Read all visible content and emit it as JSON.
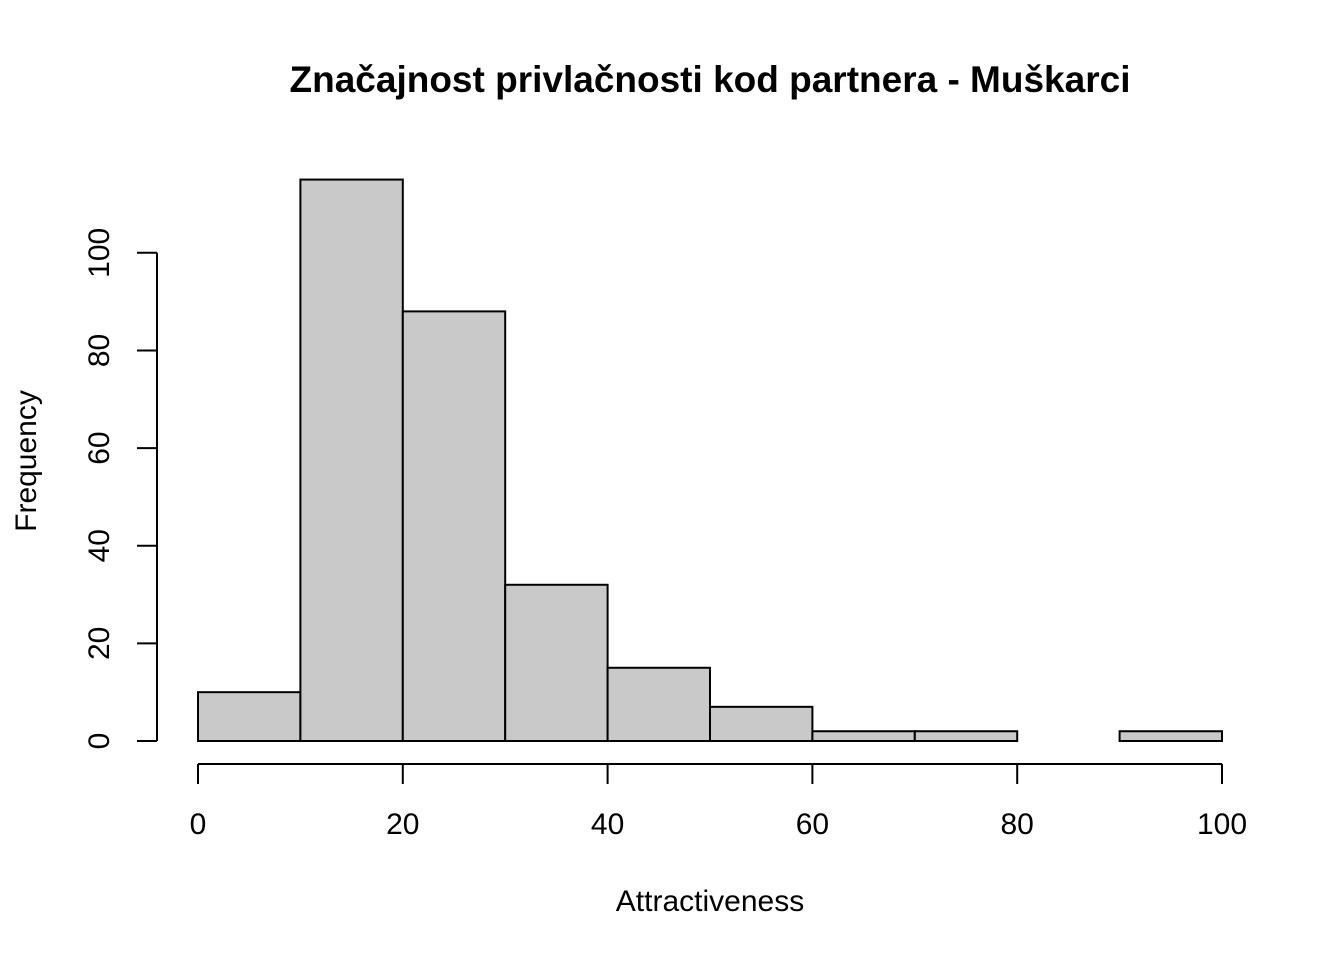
{
  "chart_data": {
    "type": "bar",
    "title": "Značajnost privlačnosti kod partnera - Muškarci",
    "xlabel": "Attractiveness",
    "ylabel": "Frequency",
    "bins": [
      {
        "from": 0,
        "to": 10,
        "count": 10
      },
      {
        "from": 10,
        "to": 20,
        "count": 115
      },
      {
        "from": 20,
        "to": 30,
        "count": 88
      },
      {
        "from": 30,
        "to": 40,
        "count": 32
      },
      {
        "from": 40,
        "to": 50,
        "count": 15
      },
      {
        "from": 50,
        "to": 60,
        "count": 7
      },
      {
        "from": 60,
        "to": 70,
        "count": 2
      },
      {
        "from": 70,
        "to": 80,
        "count": 2
      },
      {
        "from": 80,
        "to": 90,
        "count": 0
      },
      {
        "from": 90,
        "to": 100,
        "count": 2
      }
    ],
    "xlim": [
      0,
      100
    ],
    "ylim": [
      0,
      115
    ],
    "xticks": [
      0,
      20,
      40,
      60,
      80,
      100
    ],
    "yticks": [
      0,
      20,
      40,
      60,
      80,
      100
    ],
    "grid": false,
    "bar_color": "#c9c9c9",
    "edge_color": "#000000"
  }
}
